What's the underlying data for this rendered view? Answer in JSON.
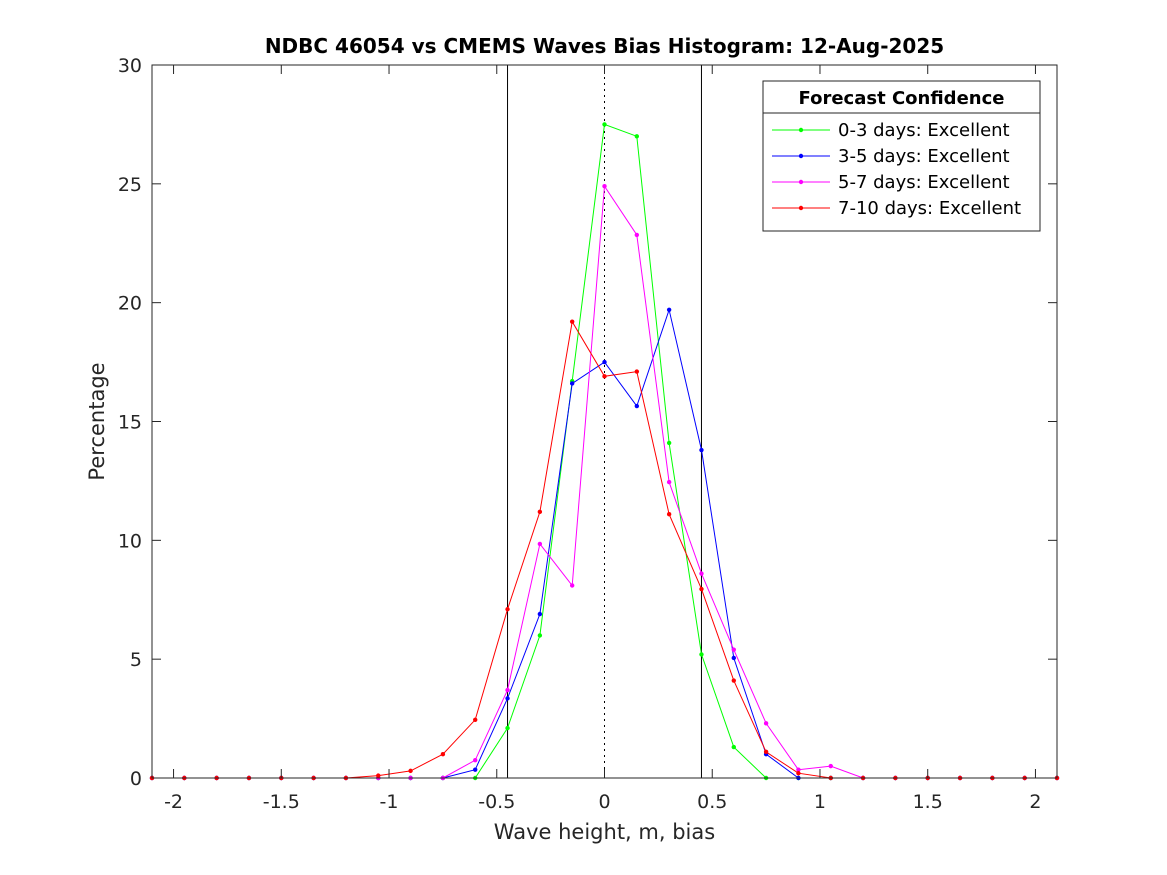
{
  "chart_data": {
    "type": "line",
    "title": "NDBC 46054 vs CMEMS Waves Bias Histogram: 12-Aug-2025",
    "xlabel": "Wave height, m, bias",
    "ylabel": "Percentage",
    "xlim": [
      -2.1,
      2.1
    ],
    "ylim": [
      0,
      30
    ],
    "xticks": [
      -2,
      -1.5,
      -1,
      -0.5,
      0,
      0.5,
      1,
      1.5,
      2
    ],
    "xtick_labels": [
      "-2",
      "-1.5",
      "-1",
      "-0.5",
      "0",
      "0.5",
      "1",
      "1.5",
      "2"
    ],
    "yticks": [
      0,
      5,
      10,
      15,
      20,
      25,
      30
    ],
    "ytick_labels": [
      "0",
      "5",
      "10",
      "15",
      "20",
      "25",
      "30"
    ],
    "grid": false,
    "legend": {
      "title": "Forecast Confidence",
      "placement": "top-right"
    },
    "reference_lines": [
      {
        "x": -0.45,
        "style": "solid",
        "color": "#000000"
      },
      {
        "x": 0,
        "style": "dotted",
        "color": "#000000"
      },
      {
        "x": 0.45,
        "style": "solid",
        "color": "#000000"
      }
    ],
    "x": [
      -2.1,
      -1.95,
      -1.8,
      -1.65,
      -1.5,
      -1.35,
      -1.2,
      -1.05,
      -0.9,
      -0.75,
      -0.6,
      -0.45,
      -0.3,
      -0.15,
      0,
      0.15,
      0.3,
      0.45,
      0.6,
      0.75,
      0.9,
      1.05,
      1.2,
      1.35,
      1.5,
      1.65,
      1.8,
      1.95,
      2.1
    ],
    "series": [
      {
        "name": "0-3 days: Excellent",
        "color": "#00ff00",
        "values": [
          0,
          0,
          0,
          0,
          0,
          0,
          0,
          0,
          0,
          0,
          0,
          2.1,
          6.0,
          16.7,
          27.5,
          27.0,
          14.1,
          5.2,
          1.3,
          0,
          0,
          0,
          0,
          0,
          0,
          0,
          0,
          0,
          0
        ]
      },
      {
        "name": "3-5 days: Excellent",
        "color": "#0000ff",
        "values": [
          0,
          0,
          0,
          0,
          0,
          0,
          0,
          0,
          0,
          0,
          0.35,
          3.35,
          6.9,
          16.6,
          17.5,
          15.65,
          19.7,
          13.8,
          5.05,
          1.0,
          0,
          0,
          0,
          0,
          0,
          0,
          0,
          0,
          0
        ]
      },
      {
        "name": "5-7 days: Excellent",
        "color": "#ff00ff",
        "values": [
          0,
          0,
          0,
          0,
          0,
          0,
          0,
          0,
          0,
          0,
          0.75,
          3.7,
          9.85,
          8.1,
          24.9,
          22.85,
          12.45,
          8.6,
          5.4,
          2.3,
          0.35,
          0.5,
          0,
          0,
          0,
          0,
          0,
          0,
          0
        ]
      },
      {
        "name": "7-10 days: Excellent",
        "color": "#ff0000",
        "values": [
          0,
          0,
          0,
          0,
          0,
          0,
          0,
          0.1,
          0.3,
          1.0,
          2.45,
          7.1,
          11.2,
          19.2,
          16.9,
          17.1,
          11.1,
          7.95,
          4.1,
          1.1,
          0.2,
          0,
          0,
          0,
          0,
          0,
          0,
          0,
          0
        ]
      }
    ]
  }
}
